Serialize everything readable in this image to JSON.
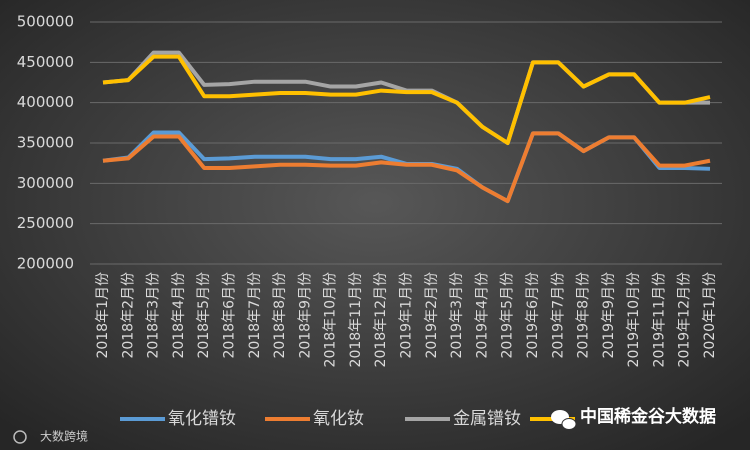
{
  "chart_data": {
    "type": "line",
    "categories": [
      "2018年1月份",
      "2018年2月份",
      "2018年3月份",
      "2018年4月份",
      "2018年5月份",
      "2018年6月份",
      "2018年7月份",
      "2018年8月份",
      "2018年9月份",
      "2018年10月份",
      "2018年11月份",
      "2018年12月份",
      "2019年1月份",
      "2019年2月份",
      "2019年3月份",
      "2019年4月份",
      "2019年5月份",
      "2019年6月份",
      "2019年7月份",
      "2019年8月份",
      "2019年9月份",
      "2019年10月份",
      "2019年11月份",
      "2019年12月份",
      "2020年1月份"
    ],
    "series": [
      {
        "name": "氧化镨钕",
        "color": "#5b9bd5",
        "values": [
          328000,
          332000,
          363000,
          363000,
          330000,
          331000,
          333000,
          333000,
          333000,
          330000,
          330000,
          333000,
          324000,
          324000,
          318000,
          295000,
          278000,
          362000,
          362000,
          340000,
          357000,
          357000,
          319000,
          319000,
          318000
        ]
      },
      {
        "name": "氧化钕",
        "color": "#ed7d31",
        "values": [
          328000,
          331000,
          358000,
          358000,
          319000,
          319000,
          321000,
          323000,
          323000,
          322000,
          322000,
          326000,
          323000,
          323000,
          316000,
          295000,
          278000,
          362000,
          362000,
          340000,
          357000,
          357000,
          322000,
          322000,
          328000
        ]
      },
      {
        "name": "金属镨钕",
        "color": "#a5a5a5",
        "values": [
          425000,
          428000,
          462000,
          462000,
          422000,
          423000,
          426000,
          426000,
          426000,
          420000,
          420000,
          425000,
          415000,
          415000,
          400000,
          370000,
          350000,
          450000,
          450000,
          420000,
          435000,
          435000,
          400000,
          400000,
          400000
        ]
      },
      {
        "color": "#ffc000",
        "values": [
          425000,
          428000,
          457000,
          457000,
          408000,
          408000,
          410000,
          412000,
          412000,
          410000,
          410000,
          415000,
          413000,
          413000,
          400000,
          370000,
          350000,
          450000,
          450000,
          420000,
          435000,
          435000,
          400000,
          400000,
          407000
        ]
      }
    ],
    "ylim": [
      200000,
      500000
    ],
    "yticks": [
      200000,
      250000,
      300000,
      350000,
      400000,
      450000,
      500000
    ],
    "grid": true
  },
  "watermark": "中国稀金谷大数据",
  "logo_text": "大数跨境"
}
